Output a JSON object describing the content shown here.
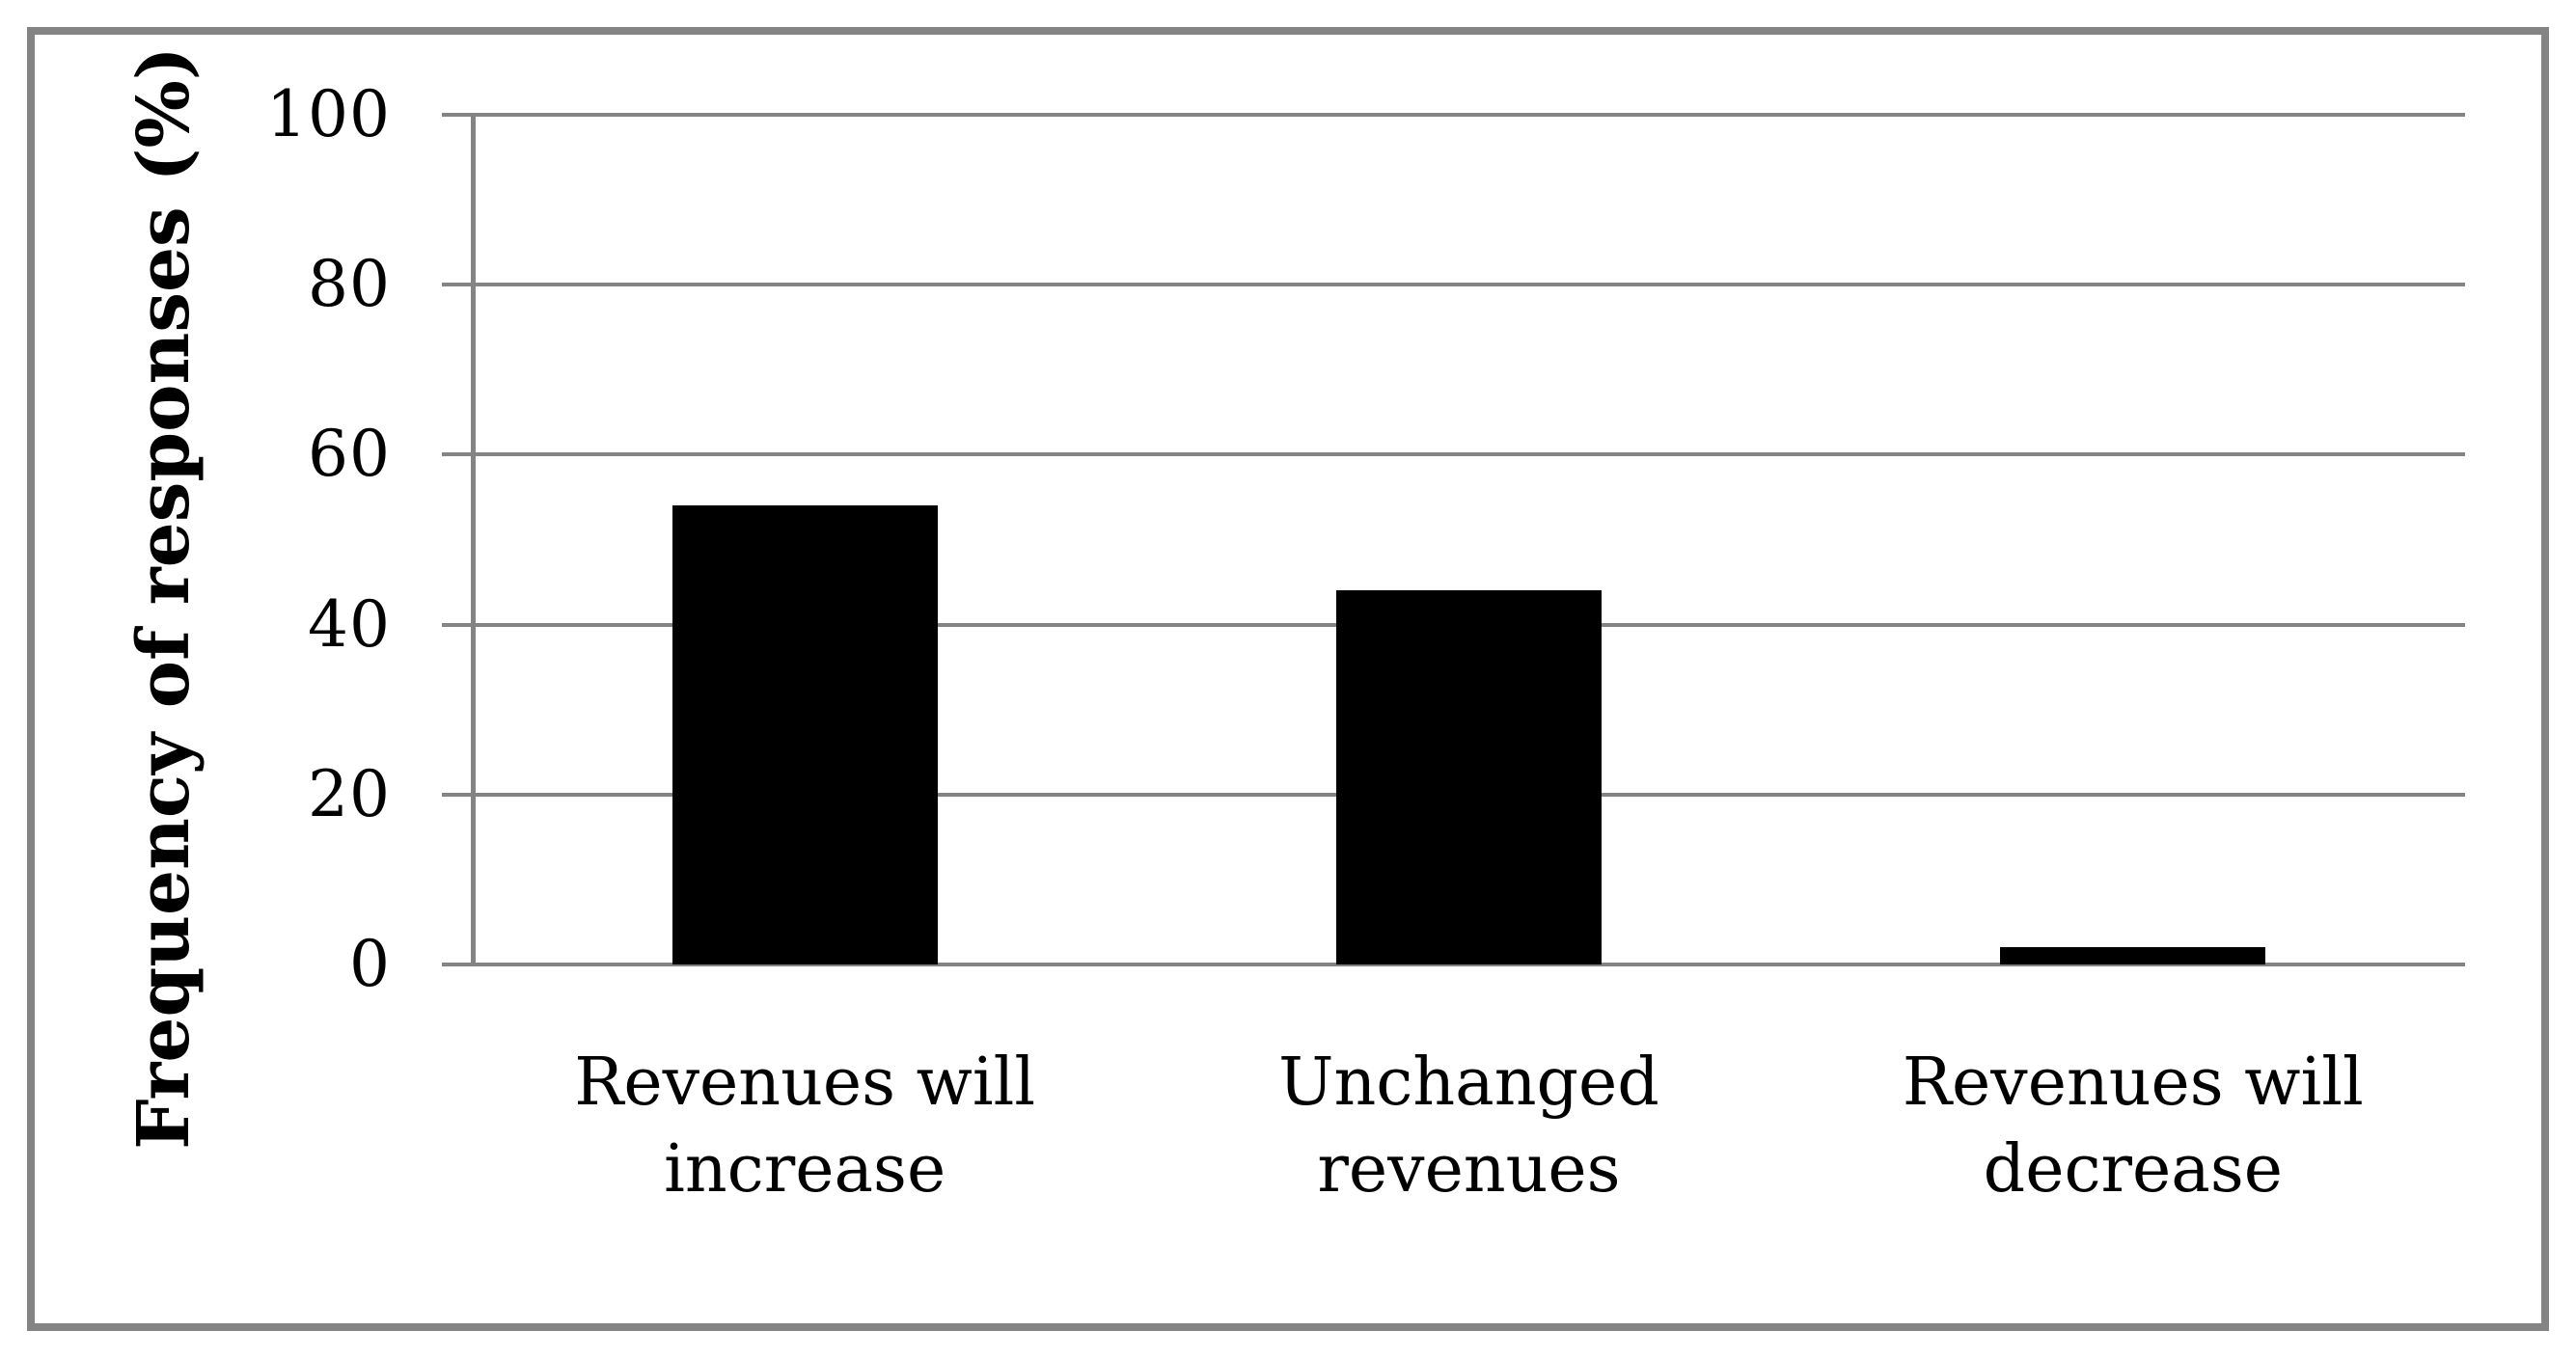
{
  "chart_data": {
    "type": "bar",
    "categories": [
      "Revenues will\nincrease",
      "Unchanged\nrevenues",
      "Revenues will\ndecrease"
    ],
    "values": [
      54,
      44,
      2
    ],
    "ylabel": "Frequency of responses (%)",
    "xlabel": "",
    "ylim": [
      0,
      100
    ],
    "yticks": [
      0,
      20,
      40,
      60,
      80,
      100
    ],
    "grid": true,
    "legend": false,
    "colors": {
      "bar": "#000000",
      "grid": "#848484",
      "frame": "#848484",
      "text": "#000000",
      "background": "#ffffff"
    }
  }
}
